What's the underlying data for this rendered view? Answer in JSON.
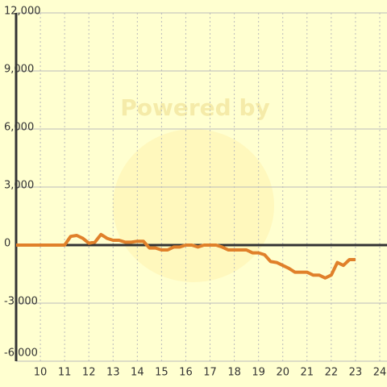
{
  "chart_data": {
    "type": "line",
    "watermark": "Powered by",
    "xlim": [
      9,
      24.3
    ],
    "xticks": [
      10,
      11,
      12,
      13,
      14,
      15,
      16,
      17,
      18,
      19,
      20,
      21,
      22,
      23,
      24
    ],
    "ylim": [
      -6000,
      12000
    ],
    "yticks": [
      {
        "value": -6000,
        "label": "-6,000"
      },
      {
        "value": -3000,
        "label": "-3,000"
      },
      0,
      {
        "value": 3000,
        "label": "3,000"
      },
      {
        "value": 6000,
        "label": "6,000"
      },
      {
        "value": 9000,
        "label": "9,000"
      },
      {
        "value": 12000,
        "label": "12,000"
      }
    ],
    "grid": true,
    "series": [
      {
        "color": "#e0802a",
        "x": [
          9,
          11,
          11.25,
          11.5,
          11.75,
          12,
          12.25,
          12.5,
          12.75,
          13,
          13.25,
          13.5,
          13.75,
          14,
          14.25,
          14.5,
          14.75,
          15,
          15.25,
          15.5,
          15.75,
          16,
          16.25,
          16.5,
          16.75,
          17,
          17.25,
          17.5,
          17.75,
          18,
          18.25,
          18.5,
          18.75,
          19,
          19.25,
          19.5,
          19.75,
          20,
          20.25,
          20.5,
          20.75,
          21,
          21.25,
          21.5,
          21.75,
          22,
          22.25,
          22.5,
          22.75,
          23
        ],
        "values": [
          0,
          0,
          450,
          500,
          350,
          100,
          150,
          550,
          350,
          250,
          250,
          150,
          150,
          200,
          200,
          -150,
          -150,
          -250,
          -250,
          -100,
          -100,
          0,
          0,
          -100,
          0,
          0,
          0,
          -100,
          -250,
          -250,
          -250,
          -250,
          -400,
          -400,
          -500,
          -850,
          -900,
          -1050,
          -1200,
          -1400,
          -1400,
          -1400,
          -1550,
          -1550,
          -1700,
          -1550,
          -900,
          -1050,
          -750,
          -750
        ]
      }
    ]
  }
}
